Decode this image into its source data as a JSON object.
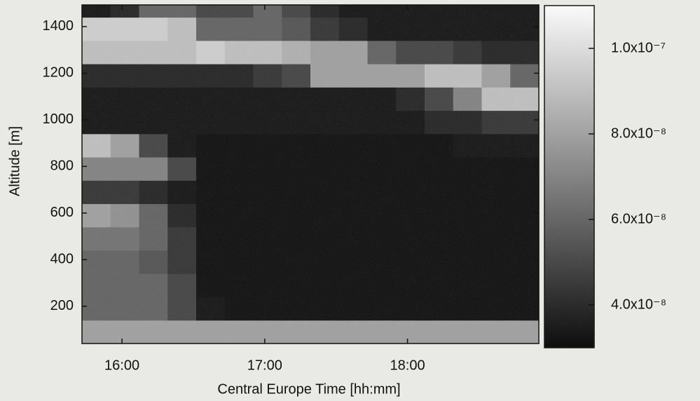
{
  "chart_data": {
    "type": "heatmap",
    "x_label": "Central Europe Time [hh:mm]",
    "y_label": "Altitude [m]",
    "x_bins": [
      15.72,
      15.92,
      16.12,
      16.32,
      16.52,
      16.72,
      16.92,
      17.12,
      17.32,
      17.52,
      17.72,
      17.92,
      18.12,
      18.32,
      18.52,
      18.72,
      18.92
    ],
    "y_bins": [
      40,
      140,
      240,
      340,
      440,
      540,
      640,
      740,
      840,
      940,
      1040,
      1140,
      1240,
      1340,
      1440,
      1493
    ],
    "z": [
      [
        8e-08,
        8e-08,
        8e-08,
        8e-08,
        8e-08,
        8e-08,
        8e-08,
        8e-08,
        8e-08,
        8e-08,
        8e-08,
        8e-08,
        8e-08,
        8e-08,
        8e-08,
        8e-08
      ],
      [
        6e-08,
        6e-08,
        6e-08,
        5e-08,
        3.5e-08,
        3.3e-08,
        3.3e-08,
        3.3e-08,
        3.3e-08,
        3.3e-08,
        3.3e-08,
        3.3e-08,
        3.3e-08,
        3.3e-08,
        3.3e-08,
        3.3e-08
      ],
      [
        6e-08,
        6e-08,
        6e-08,
        5e-08,
        3.3e-08,
        3.3e-08,
        3.3e-08,
        3.3e-08,
        3.3e-08,
        3.3e-08,
        3.3e-08,
        3.3e-08,
        3.3e-08,
        3.3e-08,
        3.3e-08,
        3.3e-08
      ],
      [
        6e-08,
        6e-08,
        5.5e-08,
        4.5e-08,
        3.3e-08,
        3.3e-08,
        3.3e-08,
        3.3e-08,
        3.3e-08,
        3.3e-08,
        3.3e-08,
        3.3e-08,
        3.3e-08,
        3.3e-08,
        3.3e-08,
        3.3e-08
      ],
      [
        6.5e-08,
        6.5e-08,
        6e-08,
        4.5e-08,
        3.3e-08,
        3.3e-08,
        3.3e-08,
        3.3e-08,
        3.3e-08,
        3.3e-08,
        3.3e-08,
        3.3e-08,
        3.3e-08,
        3.3e-08,
        3.3e-08,
        3.3e-08
      ],
      [
        8e-08,
        7.5e-08,
        6e-08,
        4e-08,
        3.3e-08,
        3.3e-08,
        3.3e-08,
        3.3e-08,
        3.3e-08,
        3.3e-08,
        3.3e-08,
        3.3e-08,
        3.3e-08,
        3.3e-08,
        3.3e-08,
        3.3e-08
      ],
      [
        4.5e-08,
        4.5e-08,
        4e-08,
        3.5e-08,
        3.3e-08,
        3.3e-08,
        3.3e-08,
        3.3e-08,
        3.3e-08,
        3.3e-08,
        3.3e-08,
        3.3e-08,
        3.3e-08,
        3.3e-08,
        3.3e-08,
        3.3e-08
      ],
      [
        7e-08,
        7e-08,
        7e-08,
        5e-08,
        3.3e-08,
        3.3e-08,
        3.3e-08,
        3.3e-08,
        3.3e-08,
        3.3e-08,
        3.3e-08,
        3.3e-08,
        3.3e-08,
        3.3e-08,
        3.3e-08,
        3.3e-08
      ],
      [
        9e-08,
        8e-08,
        5e-08,
        3.5e-08,
        3.3e-08,
        3.3e-08,
        3.3e-08,
        3.3e-08,
        3.3e-08,
        3.3e-08,
        3.3e-08,
        3.3e-08,
        3.3e-08,
        3.5e-08,
        3.5e-08,
        3.5e-08
      ],
      [
        3.5e-08,
        3.5e-08,
        3.5e-08,
        3.5e-08,
        3.5e-08,
        3.5e-08,
        3.5e-08,
        3.5e-08,
        3.5e-08,
        3.5e-08,
        3.5e-08,
        3.5e-08,
        4e-08,
        4e-08,
        4.5e-08,
        4.5e-08
      ],
      [
        3.5e-08,
        3.5e-08,
        3.5e-08,
        3.5e-08,
        3.5e-08,
        3.5e-08,
        3.5e-08,
        3.5e-08,
        3.5e-08,
        3.5e-08,
        3.5e-08,
        4e-08,
        5e-08,
        7e-08,
        9e-08,
        9e-08
      ],
      [
        4e-08,
        4e-08,
        4e-08,
        4e-08,
        4e-08,
        4e-08,
        4.5e-08,
        5e-08,
        8e-08,
        8e-08,
        8e-08,
        8e-08,
        9e-08,
        9e-08,
        8e-08,
        6e-08
      ],
      [
        9e-08,
        9e-08,
        9e-08,
        9e-08,
        9.5e-08,
        9e-08,
        9e-08,
        8.5e-08,
        8e-08,
        8e-08,
        6e-08,
        5e-08,
        5e-08,
        4.5e-08,
        4e-08,
        4e-08
      ],
      [
        9.5e-08,
        9.5e-08,
        9.5e-08,
        9e-08,
        6e-08,
        6e-08,
        6e-08,
        5.5e-08,
        4.5e-08,
        4e-08,
        3.5e-08,
        3.5e-08,
        3.5e-08,
        3.5e-08,
        3.5e-08,
        3.5e-08
      ],
      [
        3.5e-08,
        4e-08,
        6e-08,
        6e-08,
        5e-08,
        5e-08,
        6e-08,
        5e-08,
        4e-08,
        3.5e-08,
        3.5e-08,
        3.5e-08,
        3.5e-08,
        3.5e-08,
        3.5e-08,
        3.5e-08
      ]
    ],
    "xlim": [
      15.72,
      18.92
    ],
    "ylim": [
      40,
      1493
    ],
    "xticks": [
      {
        "value": 16,
        "label": "16:00"
      },
      {
        "value": 17,
        "label": "17:00"
      },
      {
        "value": 18,
        "label": "18:00"
      }
    ],
    "yticks": [
      200,
      400,
      600,
      800,
      1000,
      1200,
      1400
    ],
    "zlim": [
      3e-08,
      1.1e-07
    ],
    "zticks": [
      {
        "value": 4e-08,
        "label": "4.0x10⁻⁸"
      },
      {
        "value": 6e-08,
        "label": "6.0x10⁻⁸"
      },
      {
        "value": 8e-08,
        "label": "8.0x10⁻⁸"
      },
      {
        "value": 1e-07,
        "label": "1.0x10⁻⁷"
      }
    ],
    "colormap": [
      "#000000",
      "#ffffff"
    ]
  }
}
